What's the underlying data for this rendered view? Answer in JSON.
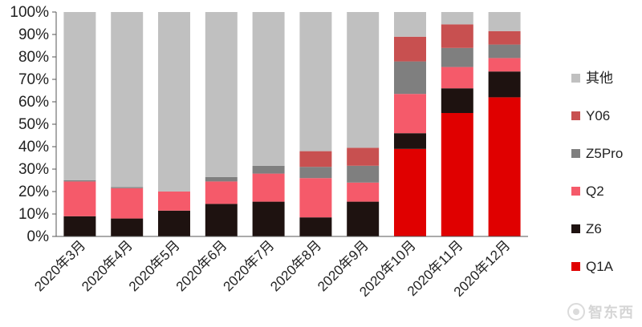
{
  "chart_data": {
    "type": "bar",
    "stacked": true,
    "percent_stacked": true,
    "categories": [
      "2020年3月",
      "2020年4月",
      "2020年5月",
      "2020年6月",
      "2020年7月",
      "2020年8月",
      "2020年9月",
      "2020年10月",
      "2020年11月",
      "2020年12月"
    ],
    "ylim": [
      0,
      100
    ],
    "y_ticks": [
      "0%",
      "10%",
      "20%",
      "30%",
      "40%",
      "50%",
      "60%",
      "70%",
      "80%",
      "90%",
      "100%"
    ],
    "grid": false,
    "legend_position": "right",
    "series": [
      {
        "name": "Q1A",
        "color": "#e00000",
        "values": [
          0,
          0,
          0,
          0,
          0,
          0,
          0,
          39,
          55,
          62
        ]
      },
      {
        "name": "Z6",
        "color": "#1e1210",
        "values": [
          9,
          8,
          11.5,
          14.5,
          15.5,
          8.5,
          15.5,
          7,
          11,
          11.5
        ]
      },
      {
        "name": "Q2",
        "color": "#f55a6a",
        "values": [
          15.5,
          13.5,
          8.5,
          10,
          12.5,
          17.5,
          8.5,
          17.5,
          9.5,
          6
        ]
      },
      {
        "name": "Z5Pro",
        "color": "#7f7f7f",
        "values": [
          0.5,
          0.5,
          0,
          2,
          3.5,
          5,
          7.5,
          14.5,
          8.5,
          6
        ]
      },
      {
        "name": "Y06",
        "color": "#c85050",
        "values": [
          0,
          0,
          0,
          0,
          0,
          7,
          8,
          11,
          10.5,
          6
        ]
      },
      {
        "name": "其他",
        "color": "#c0c0c0",
        "values": [
          75,
          78,
          80,
          73.5,
          68.5,
          62,
          60.5,
          11,
          5.5,
          8.5
        ]
      }
    ]
  },
  "watermark": {
    "text": "智东西"
  }
}
